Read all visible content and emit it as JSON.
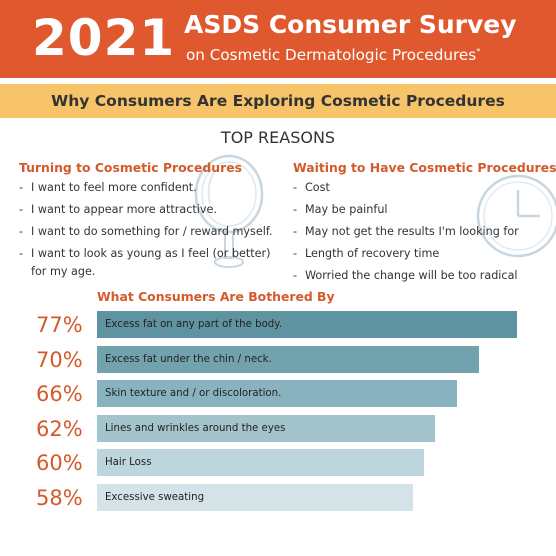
{
  "header": {
    "year": "2021",
    "title": "ASDS Consumer Survey",
    "subtitle": "on Cosmetic Dermatologic Procedures",
    "subtitle_mark": "*",
    "banner_color": "#e0592e"
  },
  "strip": {
    "text": "Why Consumers Are Exploring Cosmetic Procedures",
    "color": "#f7c46a"
  },
  "top_reasons": {
    "heading": "TOP REASONS",
    "turning": {
      "title": "Turning to Cosmetic Procedures",
      "icon": "hand-mirror-icon",
      "items": [
        "I want to feel more confident.",
        "I want to appear more attractive.",
        "I want to do something for / reward myself.",
        "I want to look as young as I feel (or better) for my age."
      ]
    },
    "waiting": {
      "title": "Waiting to Have Cosmetic Procedures",
      "icon": "clock-icon",
      "items": [
        "Cost",
        "May be painful",
        "May not get the results I'm looking for",
        "Length of recovery time",
        "Worried the change will be too radical"
      ]
    }
  },
  "chart_data": {
    "type": "bar",
    "orientation": "horizontal",
    "title": "What Consumers Are Bothered By",
    "categories": [
      "Excess fat on any part of the body.",
      "Excess fat under the chin / neck.",
      "Skin texture and / or discoloration.",
      "Lines and wrinkles around the eyes",
      "Hair Loss",
      "Excessive sweating"
    ],
    "values": [
      77,
      70,
      66,
      62,
      60,
      58
    ],
    "value_labels": [
      "77%",
      "70%",
      "66%",
      "62%",
      "60%",
      "58%"
    ],
    "units": "%",
    "colors": [
      "#5f93a1",
      "#72a2ae",
      "#88b2bd",
      "#a3c4cd",
      "#bdd5dc",
      "#d3e3e8"
    ],
    "label_color": "#d45a2b"
  }
}
